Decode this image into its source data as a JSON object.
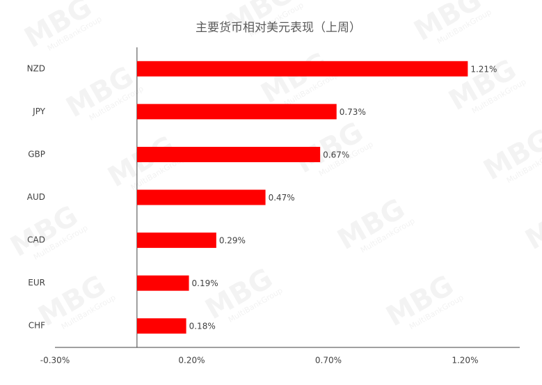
{
  "chart_data": {
    "type": "hbar",
    "title": "主要货币相对美元表现（上周）",
    "categories": [
      "NZD",
      "JPY",
      "GBP",
      "AUD",
      "CAD",
      "EUR",
      "CHF"
    ],
    "values": [
      1.21,
      0.73,
      0.67,
      0.47,
      0.29,
      0.19,
      0.18
    ],
    "value_labels": [
      "1.21%",
      "0.73%",
      "0.67%",
      "0.47%",
      "0.29%",
      "0.19%",
      "0.18%"
    ],
    "color": "#ff0000",
    "xlim": [
      -0.3,
      1.4
    ],
    "xticks": [
      {
        "value": -0.3,
        "label": "-0.30%"
      },
      {
        "value": 0.2,
        "label": "0.20%"
      },
      {
        "value": 0.7,
        "label": "0.70%"
      },
      {
        "value": 1.2,
        "label": "1.20%"
      }
    ],
    "grid": false,
    "watermark": "MBG",
    "watermark_sub": "MultiBankGroup"
  }
}
